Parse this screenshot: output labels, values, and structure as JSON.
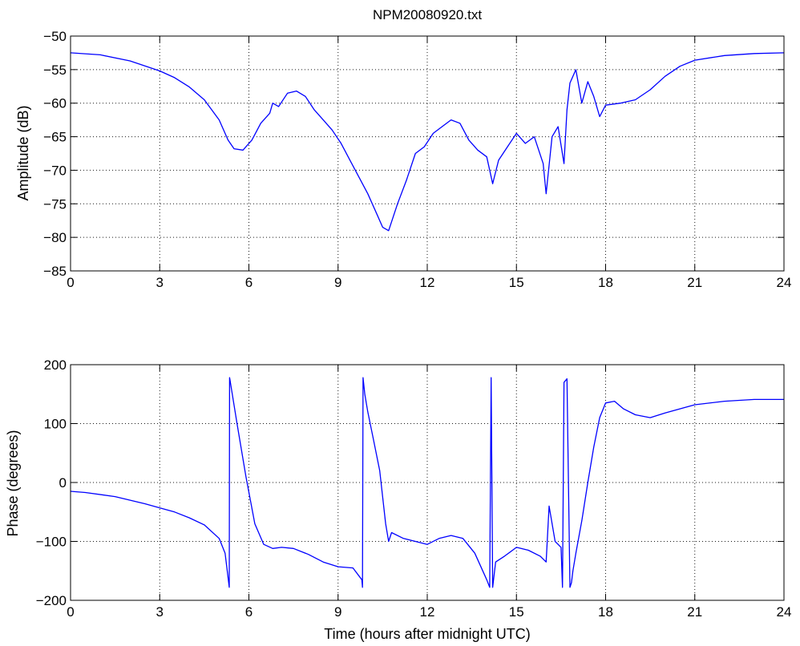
{
  "chart_data": [
    {
      "type": "line",
      "title": "NPM20080920.txt",
      "xlabel": "",
      "ylabel": "Amplitude (dB)",
      "xlim": [
        0,
        24
      ],
      "ylim": [
        -85,
        -50
      ],
      "xticks": [
        "0",
        "3",
        "6",
        "9",
        "12",
        "15",
        "18",
        "21",
        "24"
      ],
      "yticks": [
        "-85",
        "-80",
        "-75",
        "-70",
        "-65",
        "-60",
        "-55",
        "-50"
      ],
      "grid": true,
      "line_color": "#0000ff",
      "series": [
        {
          "x": [
            0,
            1,
            2,
            3,
            3.5,
            4,
            4.5,
            5,
            5.3,
            5.5,
            5.8,
            6.1,
            6.4,
            6.7,
            6.8,
            7.0,
            7.3,
            7.6,
            7.9,
            8.2,
            8.5,
            8.8,
            9.1,
            9.4,
            9.7,
            10.0,
            10.3,
            10.5,
            10.7,
            11.0,
            11.3,
            11.6,
            11.9,
            12.2,
            12.5,
            12.8,
            13.1,
            13.4,
            13.7,
            14.0,
            14.2,
            14.4,
            14.7,
            15.0,
            15.3,
            15.6,
            15.9,
            16.0,
            16.2,
            16.4,
            16.6,
            16.7,
            16.8,
            17.0,
            17.2,
            17.4,
            17.6,
            17.8,
            18.0,
            18.5,
            19.0,
            19.5,
            20.0,
            20.5,
            21.0,
            22.0,
            23.0,
            24.0
          ],
          "y": [
            -52.5,
            -52.8,
            -53.7,
            -55.2,
            -56.2,
            -57.6,
            -59.5,
            -62.5,
            -65.5,
            -66.8,
            -67.0,
            -65.5,
            -63.0,
            -61.5,
            -60.0,
            -60.5,
            -58.5,
            -58.2,
            -59.0,
            -61.0,
            -62.5,
            -64.0,
            -66.0,
            -68.5,
            -71.0,
            -73.5,
            -76.5,
            -78.5,
            -79.0,
            -75.0,
            -71.5,
            -67.5,
            -66.5,
            -64.5,
            -63.5,
            -62.5,
            -63.0,
            -65.5,
            -67.0,
            -68.0,
            -72.0,
            -68.5,
            -66.5,
            -64.5,
            -66.0,
            -65.0,
            -69.0,
            -73.5,
            -65.0,
            -63.5,
            -69.0,
            -61.0,
            -57.0,
            -55.0,
            -60.0,
            -56.8,
            -59.0,
            -62.0,
            -60.3,
            -60.0,
            -59.5,
            -58.0,
            -56.0,
            -54.5,
            -53.6,
            -52.9,
            -52.6,
            -52.5
          ]
        }
      ]
    },
    {
      "type": "line",
      "title": "",
      "xlabel": "Time (hours after midnight UTC)",
      "ylabel": "Phase (degrees)",
      "xlim": [
        0,
        24
      ],
      "ylim": [
        -200,
        200
      ],
      "xticks": [
        "0",
        "3",
        "6",
        "9",
        "12",
        "15",
        "18",
        "21",
        "24"
      ],
      "yticks": [
        "-200",
        "-100",
        "0",
        "100",
        "200"
      ],
      "grid": true,
      "line_color": "#0000ff",
      "series": [
        {
          "x": [
            0,
            0.5,
            1.5,
            2.5,
            3.5,
            4.0,
            4.5,
            5.0,
            5.2,
            5.34,
            5.35,
            5.36,
            5.6,
            5.9,
            6.2,
            6.5,
            6.8,
            7.1,
            7.5,
            8.0,
            8.5,
            9.0,
            9.5,
            9.8,
            9.82,
            9.84,
            9.9,
            10.0,
            10.2,
            10.4,
            10.6,
            10.7,
            10.8,
            11.2,
            11.6,
            12.0,
            12.4,
            12.8,
            13.2,
            13.6,
            14.0,
            14.1,
            14.15,
            14.2,
            14.3,
            14.6,
            15.0,
            15.4,
            15.8,
            16.0,
            16.1,
            16.3,
            16.5,
            16.55,
            16.6,
            16.7,
            16.8,
            16.85,
            16.9,
            17.0,
            17.2,
            17.4,
            17.6,
            17.8,
            18.0,
            18.3,
            18.6,
            19.0,
            19.5,
            20.0,
            20.5,
            21.0,
            22.0,
            23.0,
            24.0
          ],
          "y": [
            -15,
            -17,
            -24,
            -36,
            -50,
            -60,
            -72,
            -95,
            -120,
            -178,
            178,
            175,
            100,
            10,
            -70,
            -105,
            -112,
            -110,
            -112,
            -122,
            -135,
            -143,
            -145,
            -165,
            -178,
            178,
            150,
            120,
            70,
            20,
            -70,
            -100,
            -85,
            -95,
            -100,
            -105,
            -95,
            -90,
            -95,
            -120,
            -165,
            -178,
            178,
            -178,
            -135,
            -125,
            -110,
            -115,
            -125,
            -135,
            -40,
            -100,
            -110,
            -178,
            170,
            176,
            -178,
            -170,
            -150,
            -120,
            -65,
            0,
            60,
            110,
            135,
            138,
            125,
            115,
            110,
            118,
            125,
            132,
            138,
            141,
            141
          ]
        }
      ]
    }
  ]
}
